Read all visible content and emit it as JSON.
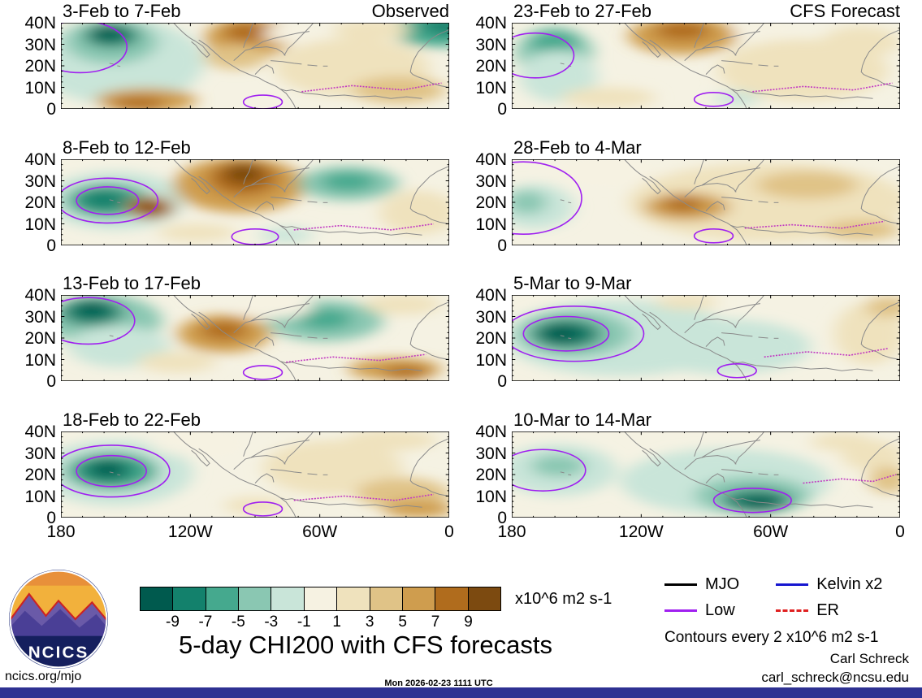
{
  "chart_data": {
    "type": "heatmap",
    "title": "5-day CHI200 with CFS forecasts",
    "panel_bg": "#f5f2e3",
    "x_ticks": [
      "180",
      "120W",
      "60W",
      "0"
    ],
    "y_ticks": [
      "40N",
      "30N",
      "20N",
      "10N",
      "0"
    ],
    "colorbar": {
      "levels": [
        -9,
        -7,
        -5,
        -3,
        -1,
        1,
        3,
        5,
        7,
        9
      ],
      "colors": [
        "#005a4e",
        "#13816c",
        "#45a98e",
        "#8ac7b2",
        "#c9e5d9",
        "#f6f2e2",
        "#efe2bd",
        "#e0c387",
        "#cf9d4e",
        "#b06c1d",
        "#7c4a10"
      ]
    },
    "contour_colors": {
      "low": "#a020f0",
      "dash": "#c23ac2"
    },
    "legend": [
      {
        "label": "MJO",
        "color": "#000000",
        "style": "solid"
      },
      {
        "label": "Low",
        "color": "#a020f0",
        "style": "solid"
      },
      {
        "label": "Kelvin x2",
        "color": "#1616d0",
        "style": "solid"
      },
      {
        "label": "ER",
        "color": "#e02020",
        "style": "dashed"
      }
    ],
    "texts": {
      "units": "x10^6 m2 s-1",
      "contour_note": "Contours every 2 x10^6 m2 s-1",
      "credit_name": "Carl Schreck",
      "credit_email": "carl_schreck@ncsu.edu",
      "site": "ncics.org/mjo",
      "timestamp": "Mon 2026-02-23 1111 UTC",
      "logo_text": "NCICS"
    },
    "panels": [
      {
        "title": "3-Feb to 7-Feb",
        "corner": "Observed",
        "blobs": [
          [
            15,
            45,
            22,
            50,
            4
          ],
          [
            13,
            22,
            12,
            26,
            3
          ],
          [
            13,
            15,
            7,
            14,
            1
          ],
          [
            12,
            12,
            4,
            8,
            0
          ],
          [
            97,
            8,
            12,
            20,
            2
          ],
          [
            99,
            4,
            6,
            10,
            1
          ],
          [
            48,
            18,
            11,
            24,
            8
          ],
          [
            48,
            11,
            6,
            12,
            9
          ],
          [
            45,
            40,
            8,
            14,
            7
          ],
          [
            22,
            90,
            13,
            14,
            8
          ],
          [
            20,
            94,
            7,
            8,
            9
          ],
          [
            75,
            52,
            20,
            34,
            6
          ],
          [
            87,
            78,
            12,
            16,
            7
          ],
          [
            80,
            8,
            10,
            12,
            6
          ],
          [
            60,
            13,
            8,
            10,
            5
          ]
        ],
        "rings": [
          [
            5,
            28,
            12,
            30
          ],
          [
            52,
            92,
            5,
            8
          ]
        ],
        "dashes": [
          [
            [
              62,
              80
            ],
            [
              75,
              73
            ],
            [
              88,
              78
            ],
            [
              98,
              70
            ]
          ]
        ]
      },
      {
        "title": "8-Feb to 12-Feb",
        "corner": null,
        "blobs": [
          [
            14,
            48,
            18,
            34,
            4
          ],
          [
            12,
            48,
            11,
            20,
            2
          ],
          [
            11,
            47,
            6,
            12,
            1
          ],
          [
            23,
            56,
            6,
            13,
            9
          ],
          [
            23,
            57,
            3,
            7,
            10
          ],
          [
            46,
            30,
            17,
            32,
            8
          ],
          [
            47,
            22,
            9,
            20,
            9
          ],
          [
            47,
            17,
            5,
            12,
            10
          ],
          [
            74,
            28,
            13,
            20,
            3
          ],
          [
            74,
            26,
            7,
            11,
            2
          ],
          [
            92,
            62,
            10,
            26,
            6
          ],
          [
            58,
            88,
            7,
            9,
            4
          ],
          [
            35,
            85,
            10,
            10,
            6
          ]
        ],
        "rings": [
          [
            12,
            48,
            8,
            16
          ],
          [
            12,
            48,
            13,
            26
          ],
          [
            50,
            90,
            6,
            9
          ]
        ],
        "dashes": [
          [
            [
              60,
              82
            ],
            [
              72,
              77
            ],
            [
              85,
              82
            ],
            [
              96,
              75
            ]
          ]
        ]
      },
      {
        "title": "13-Feb to 17-Feb",
        "corner": null,
        "blobs": [
          [
            11,
            30,
            15,
            30,
            3
          ],
          [
            8,
            20,
            8,
            16,
            1
          ],
          [
            8,
            17,
            4,
            8,
            0
          ],
          [
            15,
            60,
            13,
            24,
            4
          ],
          [
            42,
            45,
            12,
            22,
            8
          ],
          [
            42,
            41,
            6,
            11,
            9
          ],
          [
            30,
            78,
            10,
            12,
            6
          ],
          [
            68,
            30,
            15,
            24,
            3
          ],
          [
            68,
            28,
            7,
            12,
            2
          ],
          [
            88,
            11,
            10,
            12,
            6
          ],
          [
            86,
            86,
            12,
            13,
            8
          ],
          [
            89,
            90,
            6,
            8,
            9
          ],
          [
            55,
            15,
            10,
            12,
            5
          ]
        ],
        "rings": [
          [
            7,
            30,
            12,
            27
          ],
          [
            52,
            90,
            5,
            8
          ]
        ],
        "dashes": [
          [
            [
              58,
              78
            ],
            [
              70,
              72
            ],
            [
              82,
              76
            ],
            [
              94,
              69
            ]
          ]
        ]
      },
      {
        "title": "18-Feb to 22-Feb",
        "corner": null,
        "blobs": [
          [
            14,
            48,
            20,
            38,
            4
          ],
          [
            13,
            46,
            12,
            22,
            2
          ],
          [
            12,
            45,
            7,
            14,
            1
          ],
          [
            12,
            44,
            4,
            8,
            0
          ],
          [
            70,
            42,
            18,
            32,
            6
          ],
          [
            88,
            72,
            12,
            18,
            7
          ],
          [
            92,
            90,
            9,
            10,
            8
          ],
          [
            85,
            10,
            12,
            12,
            6
          ],
          [
            50,
            86,
            8,
            10,
            6
          ],
          [
            35,
            15,
            12,
            14,
            5
          ]
        ],
        "rings": [
          [
            13,
            46,
            9,
            18
          ],
          [
            13,
            46,
            15,
            30
          ],
          [
            52,
            90,
            5,
            8
          ]
        ],
        "dashes": [
          [
            [
              60,
              80
            ],
            [
              73,
              75
            ],
            [
              86,
              80
            ],
            [
              96,
              73
            ]
          ]
        ]
      },
      {
        "title": "23-Feb to 27-Feb",
        "corner": "CFS Forecast",
        "blobs": [
          [
            11,
            35,
            10,
            30,
            3
          ],
          [
            11,
            24,
            6,
            15,
            2
          ],
          [
            12,
            62,
            10,
            30,
            4
          ],
          [
            44,
            15,
            14,
            22,
            8
          ],
          [
            44,
            9,
            7,
            11,
            9
          ],
          [
            75,
            55,
            22,
            36,
            6
          ],
          [
            90,
            22,
            10,
            18,
            6
          ],
          [
            58,
            88,
            6,
            8,
            4
          ],
          [
            25,
            87,
            12,
            12,
            6
          ],
          [
            65,
            10,
            8,
            10,
            5
          ]
        ],
        "rings": [
          [
            6,
            38,
            10,
            26
          ],
          [
            52,
            89,
            5,
            8
          ]
        ],
        "dashes": [
          [
            [
              62,
              80
            ],
            [
              75,
              74
            ],
            [
              88,
              78
            ],
            [
              98,
              70
            ]
          ]
        ]
      },
      {
        "title": "28-Feb to 4-Mar",
        "corner": null,
        "blobs": [
          [
            6,
            55,
            10,
            26,
            4
          ],
          [
            4,
            50,
            5,
            14,
            3
          ],
          [
            66,
            50,
            36,
            46,
            6
          ],
          [
            45,
            55,
            11,
            16,
            8
          ],
          [
            44,
            52,
            5,
            9,
            9
          ],
          [
            76,
            30,
            13,
            16,
            7
          ],
          [
            90,
            82,
            10,
            12,
            7
          ],
          [
            25,
            15,
            14,
            14,
            5
          ]
        ],
        "rings": [
          [
            3,
            45,
            15,
            42
          ],
          [
            52,
            89,
            5,
            8
          ]
        ],
        "dashes": [
          [
            [
              60,
              80
            ],
            [
              72,
              76
            ],
            [
              85,
              80
            ],
            [
              96,
              72
            ]
          ]
        ]
      },
      {
        "title": "5-Mar to 9-Mar",
        "corner": null,
        "blobs": [
          [
            28,
            50,
            30,
            44,
            4
          ],
          [
            16,
            45,
            15,
            27,
            3
          ],
          [
            14,
            45,
            9,
            17,
            1
          ],
          [
            13,
            45,
            5,
            9,
            0
          ],
          [
            55,
            60,
            22,
            32,
            4
          ],
          [
            58,
            62,
            16,
            22,
            4
          ],
          [
            92,
            45,
            9,
            36,
            6
          ],
          [
            97,
            14,
            6,
            12,
            7
          ],
          [
            45,
            8,
            8,
            9,
            6
          ]
        ],
        "rings": [
          [
            14,
            45,
            11,
            20
          ],
          [
            16,
            45,
            18,
            32
          ],
          [
            58,
            88,
            5,
            8
          ]
        ],
        "dashes": [
          [
            [
              65,
              72
            ],
            [
              76,
              66
            ],
            [
              87,
              70
            ],
            [
              97,
              62
            ]
          ]
        ]
      },
      {
        "title": "10-Mar to 14-Mar",
        "corner": null,
        "blobs": [
          [
            12,
            45,
            15,
            30,
            4
          ],
          [
            12,
            40,
            7,
            13,
            3
          ],
          [
            55,
            58,
            27,
            38,
            4
          ],
          [
            62,
            74,
            15,
            22,
            3
          ],
          [
            63,
            80,
            9,
            13,
            1
          ],
          [
            64,
            83,
            5,
            7,
            0
          ],
          [
            93,
            28,
            8,
            18,
            6
          ],
          [
            97,
            56,
            5,
            16,
            7
          ],
          [
            85,
            12,
            8,
            10,
            6
          ]
        ],
        "rings": [
          [
            8,
            45,
            11,
            24
          ],
          [
            62,
            80,
            10,
            14
          ]
        ],
        "dashes": [
          [
            [
              75,
              60
            ],
            [
              85,
              55
            ],
            [
              93,
              58
            ],
            [
              99,
              50
            ]
          ]
        ]
      }
    ]
  }
}
